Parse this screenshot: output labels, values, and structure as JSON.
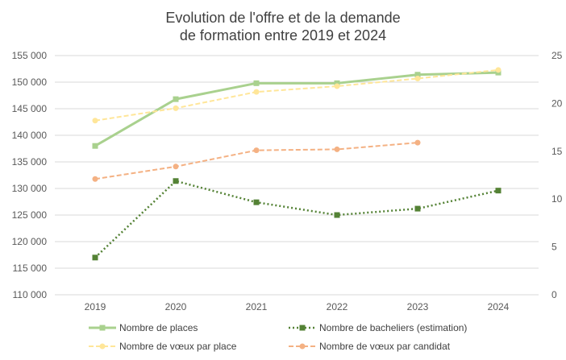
{
  "chart_data": {
    "type": "line",
    "title": [
      "Evolution de l'offre et de la demande",
      "de formation entre 2019 et 2024"
    ],
    "categories": [
      "2019",
      "2020",
      "2021",
      "2022",
      "2023",
      "2024"
    ],
    "y_left": {
      "lim": [
        110000,
        155000
      ],
      "ticks": [
        110000,
        115000,
        120000,
        125000,
        130000,
        135000,
        140000,
        145000,
        150000,
        155000
      ],
      "tick_labels": [
        "110 000",
        "115 000",
        "120 000",
        "125 000",
        "130 000",
        "135 000",
        "140 000",
        "145 000",
        "150 000",
        "155 000"
      ]
    },
    "y_right": {
      "lim": [
        0,
        25
      ],
      "ticks": [
        0,
        5,
        10,
        15,
        20,
        25
      ],
      "tick_labels": [
        "0",
        "5",
        "10",
        "15",
        "20",
        "25"
      ]
    },
    "grid": true,
    "legend_position": "bottom",
    "series": [
      {
        "name": "Nombre de places",
        "axis": "left",
        "values": [
          138000,
          146800,
          149800,
          149800,
          151400,
          151800
        ],
        "color": "#a9d18e",
        "style": "solid",
        "marker": "square"
      },
      {
        "name": "Nombre de bacheliers (estimation)",
        "axis": "left",
        "values": [
          117000,
          131400,
          127400,
          125000,
          126200,
          129600
        ],
        "color": "#548235",
        "style": "dotted",
        "marker": "square"
      },
      {
        "name": "Nombre de vœux par place",
        "axis": "right",
        "values": [
          18.2,
          19.5,
          21.2,
          21.8,
          22.6,
          23.5
        ],
        "color": "#ffe699",
        "style": "dashed",
        "marker": "circle"
      },
      {
        "name": "Nombre de vœux par candidat",
        "axis": "right",
        "values": [
          12.1,
          13.4,
          15.1,
          15.2,
          15.9,
          null
        ],
        "color": "#f4b183",
        "style": "dashed",
        "marker": "circle"
      }
    ]
  }
}
